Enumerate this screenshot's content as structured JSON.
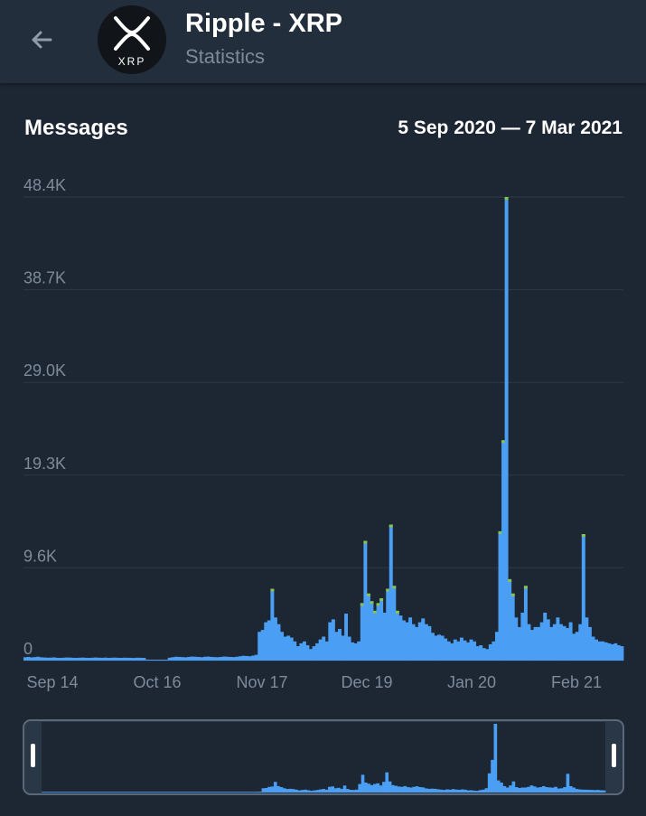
{
  "header": {
    "title": "Ripple - XRP",
    "subtitle": "Statistics",
    "avatar_label": "XRP",
    "back_icon": "arrow-left-icon"
  },
  "section": {
    "title": "Messages",
    "date_range": "5 Sep 2020 — 7 Mar 2021"
  },
  "colors": {
    "bar": "#4a9ff5",
    "bar_top": "#8bc34a",
    "background": "#1d2733",
    "header": "#232e3c",
    "grid": "#2c3947",
    "tick": "#7d8b99"
  },
  "chart_data": {
    "type": "bar",
    "start_date": "2020-09-05",
    "end_date": "2021-03-07",
    "y_ticks": [
      "48.4K",
      "38.7K",
      "29.0K",
      "19.3K",
      "9.6K",
      "0"
    ],
    "x_ticks": [
      "Sep 14",
      "Oct 16",
      "Nov 17",
      "Dec 19",
      "Jan 20",
      "Feb 21"
    ],
    "ylim": [
      0,
      48400
    ],
    "grid": true,
    "values": [
      350,
      380,
      330,
      360,
      400,
      340,
      320,
      300,
      310,
      330,
      290,
      280,
      300,
      320,
      310,
      290,
      280,
      300,
      310,
      290,
      280,
      300,
      320,
      300,
      290,
      310,
      280,
      300,
      310,
      290,
      280,
      300,
      290,
      280,
      270,
      300,
      290,
      280,
      100,
      80,
      70,
      60,
      80,
      90,
      100,
      300,
      350,
      400,
      380,
      360,
      340,
      380,
      420,
      400,
      380,
      350,
      400,
      420,
      380,
      360,
      350,
      380,
      420,
      400,
      380,
      360,
      400,
      450,
      500,
      480,
      450,
      520,
      600,
      3000,
      3200,
      4000,
      4200,
      7500,
      4500,
      3800,
      3000,
      2500,
      2600,
      2400,
      2000,
      1500,
      1800,
      2000,
      1600,
      1200,
      1500,
      1800,
      2200,
      2500,
      2000,
      4000,
      4300,
      3000,
      3300,
      2600,
      4900,
      2500,
      1900,
      1800,
      2000,
      6000,
      12500,
      7000,
      6200,
      5200,
      6000,
      6500,
      5000,
      7500,
      14200,
      7800,
      5200,
      4700,
      4200,
      4000,
      4500,
      3800,
      3500,
      4000,
      4400,
      3800,
      3600,
      2900,
      2600,
      2700,
      2600,
      2300,
      2000,
      1800,
      2200,
      2000,
      2400,
      2100,
      1900,
      2200,
      2000,
      1500,
      1600,
      1300,
      1200,
      1700,
      2000,
      3000,
      13500,
      23000,
      48400,
      8500,
      7000,
      4500,
      3500,
      5000,
      7800,
      3800,
      3200,
      3500,
      3500,
      4000,
      5000,
      4300,
      3500,
      3800,
      4500,
      3800,
      3600,
      3400,
      4000,
      2800,
      3000,
      3800,
      13200,
      4500,
      3500,
      2500,
      2200,
      2000,
      2000,
      1900,
      1800,
      1700,
      1800,
      1600,
      1500
    ]
  }
}
